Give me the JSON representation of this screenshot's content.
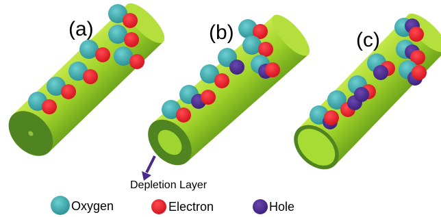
{
  "panels": [
    {
      "label": "(a)"
    },
    {
      "label": "(b)"
    },
    {
      "label": "(c)"
    }
  ],
  "annotation": "Depletion Layer",
  "legend": [
    {
      "label": "Oxygen"
    },
    {
      "label": "Electron"
    },
    {
      "label": "Hole"
    }
  ]
}
